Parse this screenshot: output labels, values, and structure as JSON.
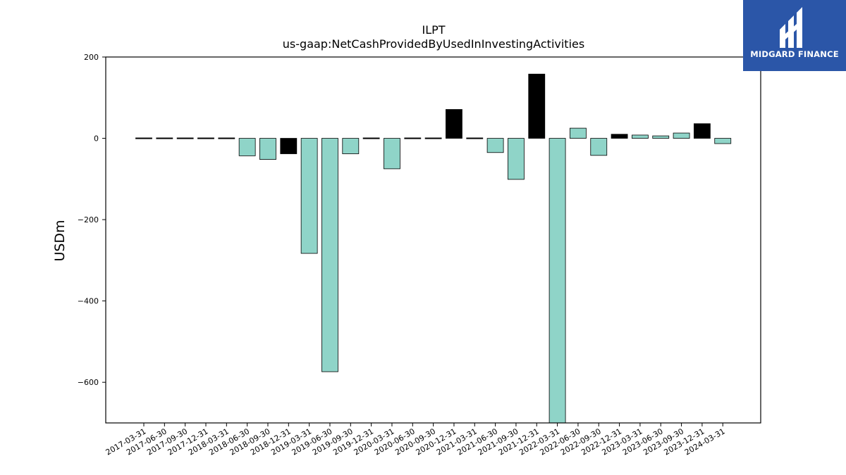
{
  "chart_data": {
    "type": "bar",
    "title": "ILPT",
    "subtitle": "us-gaap:NetCashProvidedByUsedInInvestingActivities",
    "ylabel": "USDm",
    "xlabel": "",
    "ylim": [
      -700,
      200
    ],
    "yticks": [
      200,
      0,
      -200,
      -400,
      -600
    ],
    "grid": false,
    "categories": [
      "2017-03-31",
      "2017-06-30",
      "2017-09-30",
      "2017-12-31",
      "2018-03-31",
      "2018-06-30",
      "2018-09-30",
      "2018-12-31",
      "2019-03-31",
      "2019-06-30",
      "2019-09-30",
      "2019-12-31",
      "2020-03-31",
      "2020-06-30",
      "2020-09-30",
      "2020-12-31",
      "2021-03-31",
      "2021-06-30",
      "2021-09-30",
      "2021-12-31",
      "2022-03-31",
      "2022-06-30",
      "2022-09-30",
      "2022-12-31",
      "2023-03-31",
      "2023-06-30",
      "2023-09-30",
      "2023-12-31",
      "2024-03-31"
    ],
    "values": [
      0,
      0,
      0,
      0,
      0,
      -43,
      -52,
      -38,
      -283,
      -574,
      -38,
      0,
      -75,
      0,
      0,
      71,
      0,
      -35,
      -101,
      158,
      -720,
      25,
      -42,
      10,
      8,
      6,
      13,
      36,
      -13
    ],
    "highlight_quarter": "12-31",
    "colors": {
      "negative_or_regular": "#8fd4c8",
      "year_end": "#000000",
      "edge": "#000000"
    }
  },
  "logo": {
    "text": "MIDGARD FINANCE",
    "icon": "midgard-logo-icon",
    "background": "#2b56a8"
  }
}
